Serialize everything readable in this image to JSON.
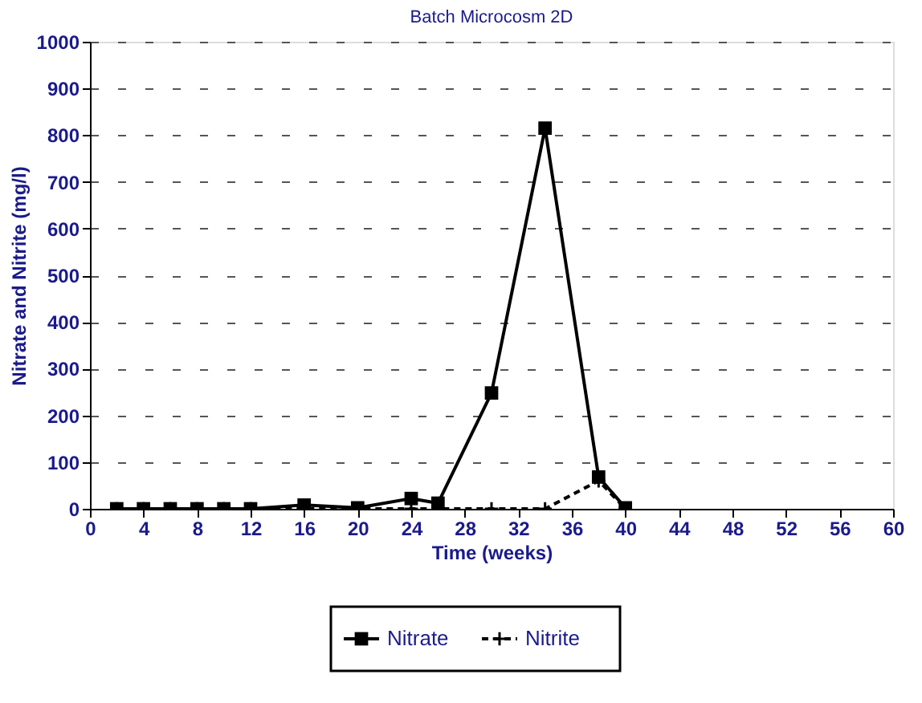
{
  "chart_data": {
    "type": "line",
    "title": "Batch Microcosm 2D",
    "xlabel": "Time (weeks)",
    "ylabel": "Nitrate and Nitrite (mg/l)",
    "x": [
      2,
      4,
      6,
      8,
      10,
      12,
      16,
      20,
      24,
      26,
      30,
      34,
      38,
      40
    ],
    "series": [
      {
        "name": "Nitrate",
        "color": "#000000",
        "marker": "square",
        "line_style": "solid",
        "values": [
          0,
          0,
          0,
          0,
          0,
          0,
          8,
          2,
          22,
          12,
          248,
          815,
          68,
          2
        ]
      },
      {
        "name": "Nitrite",
        "color": "#000000",
        "marker": "cross",
        "line_style": "dashed",
        "values": [
          0,
          0,
          0,
          0,
          0,
          0,
          0,
          0,
          0,
          0,
          0,
          0,
          60,
          0
        ]
      }
    ],
    "xlim": [
      0,
      60
    ],
    "xticks": [
      0,
      4,
      8,
      12,
      16,
      20,
      24,
      28,
      32,
      36,
      40,
      44,
      48,
      52,
      56,
      60
    ],
    "ylim": [
      0,
      1000
    ],
    "yticks": [
      0,
      100,
      200,
      300,
      400,
      500,
      600,
      700,
      800,
      900,
      1000
    ],
    "grid": "y",
    "legend": "bottom"
  }
}
